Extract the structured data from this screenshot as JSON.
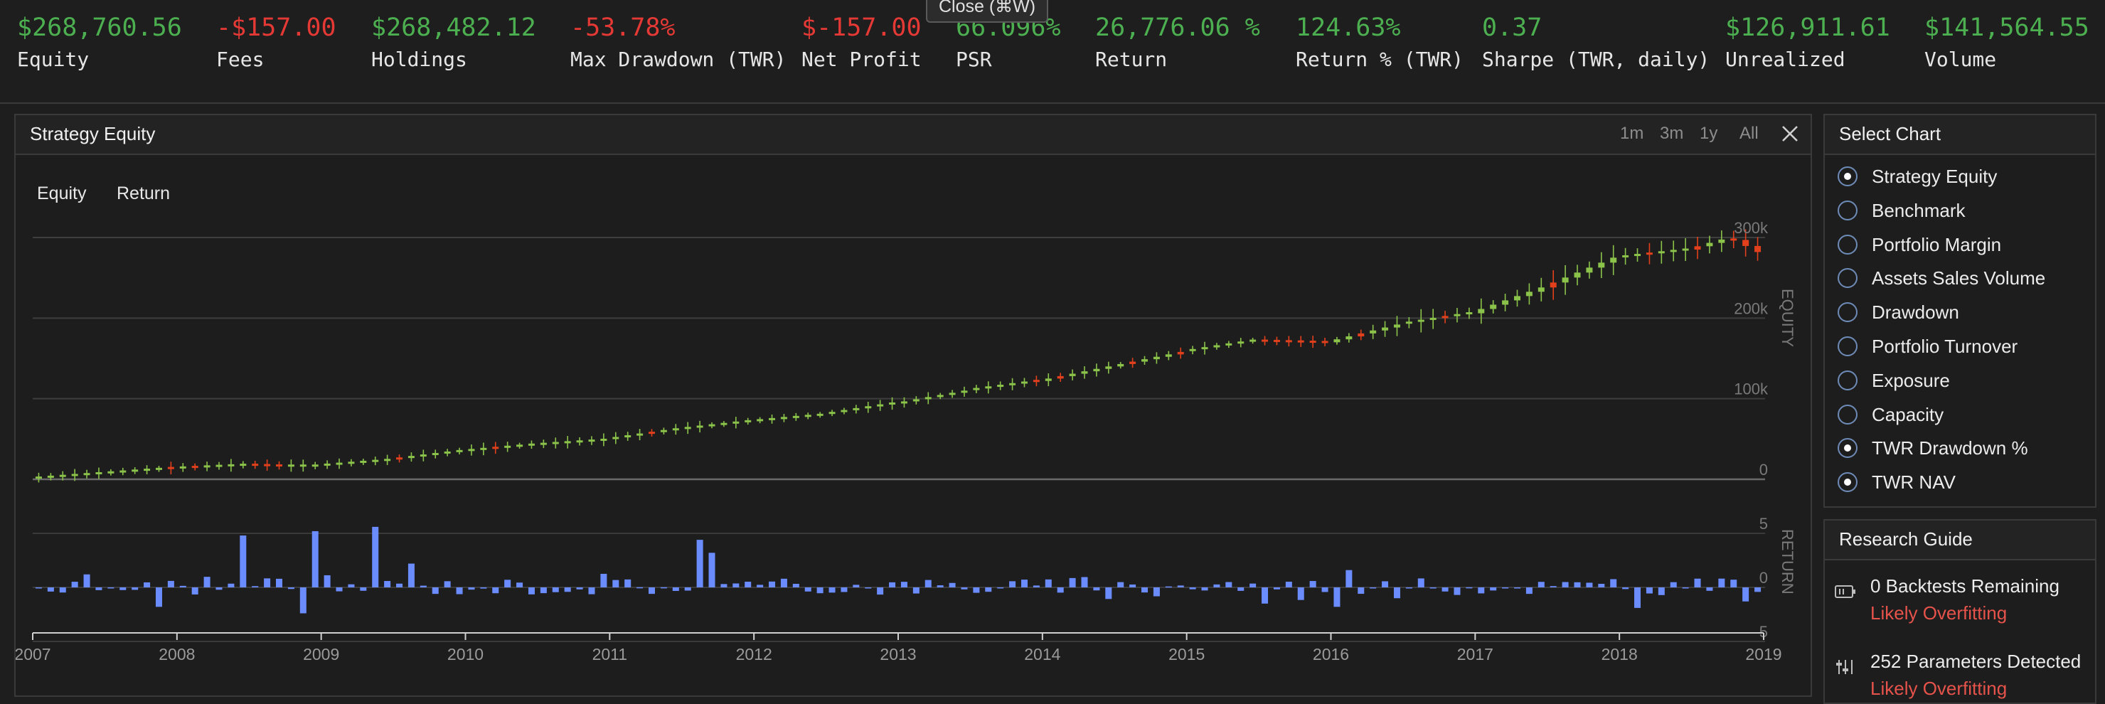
{
  "tooltip": "Close (⌘W)",
  "stats": [
    {
      "value": "$268,760.56",
      "label": "Equity",
      "tone": "pos"
    },
    {
      "value": "-$157.00",
      "label": "Fees",
      "tone": "neg"
    },
    {
      "value": "$268,482.12",
      "label": "Holdings",
      "tone": "pos"
    },
    {
      "value": "-53.78%",
      "label": "Max Drawdown (TWR)",
      "tone": "neg"
    },
    {
      "value": "$-157.00",
      "label": "Net Profit",
      "tone": "neg"
    },
    {
      "value": "66.096%",
      "label": "PSR",
      "tone": "pos"
    },
    {
      "value": "26,776.06 %",
      "label": "Return",
      "tone": "pos"
    },
    {
      "value": "124.63%",
      "label": "Return % (TWR)",
      "tone": "pos"
    },
    {
      "value": "0.37",
      "label": "Sharpe (TWR, daily)",
      "tone": "pos"
    },
    {
      "value": "$126,911.61",
      "label": "Unrealized",
      "tone": "pos"
    },
    {
      "value": "$141,564.55",
      "label": "Volume",
      "tone": "pos"
    }
  ],
  "chart_panel": {
    "title": "Strategy Equity",
    "ranges": [
      "1m",
      "3m",
      "1y",
      "All"
    ],
    "close_icon": "close-icon",
    "tabs": [
      "Equity",
      "Return"
    ]
  },
  "chart_data": {
    "type": "candlestick+bar",
    "panes": [
      {
        "name": "EQUITY",
        "ticks": [
          "300k",
          "200k",
          "100k",
          "0"
        ],
        "ylim": [
          0,
          300000
        ]
      },
      {
        "name": "RETURN",
        "ticks": [
          "5",
          "0",
          "-5"
        ],
        "ylim": [
          -5,
          5
        ]
      }
    ],
    "x_labels": [
      "2007",
      "2008",
      "2009",
      "2010",
      "2011",
      "2012",
      "2013",
      "2014",
      "2015",
      "2016",
      "2017",
      "2018",
      "2019"
    ],
    "xlim": [
      2007,
      2019
    ],
    "up_color": "#8bc34a",
    "down_color": "#e2401c",
    "bar_color": "#6b8cff",
    "equity": [
      {
        "t": 2007.0,
        "v": 1000
      },
      {
        "t": 2008.0,
        "v": 14000
      },
      {
        "t": 2008.5,
        "v": 18000
      },
      {
        "t": 2008.7,
        "v": 17000
      },
      {
        "t": 2009.0,
        "v": 17000
      },
      {
        "t": 2009.5,
        "v": 24000
      },
      {
        "t": 2010.0,
        "v": 35000
      },
      {
        "t": 2010.5,
        "v": 43000
      },
      {
        "t": 2011.0,
        "v": 49000
      },
      {
        "t": 2011.5,
        "v": 62000
      },
      {
        "t": 2012.0,
        "v": 72000
      },
      {
        "t": 2012.5,
        "v": 80000
      },
      {
        "t": 2013.0,
        "v": 94000
      },
      {
        "t": 2013.5,
        "v": 110000
      },
      {
        "t": 2014.0,
        "v": 122000
      },
      {
        "t": 2014.5,
        "v": 140000
      },
      {
        "t": 2015.0,
        "v": 158000
      },
      {
        "t": 2015.5,
        "v": 172000
      },
      {
        "t": 2016.0,
        "v": 170000
      },
      {
        "t": 2016.5,
        "v": 192000
      },
      {
        "t": 2017.0,
        "v": 206000
      },
      {
        "t": 2017.5,
        "v": 238000
      },
      {
        "t": 2018.0,
        "v": 275000
      },
      {
        "t": 2018.5,
        "v": 285000
      },
      {
        "t": 2018.8,
        "v": 300000
      },
      {
        "t": 2019.0,
        "v": 282000
      }
    ],
    "returns": [
      {
        "t": 2008.4,
        "v": 4.8
      },
      {
        "t": 2008.9,
        "v": 5.2
      },
      {
        "t": 2009.35,
        "v": 5.6
      },
      {
        "t": 2009.6,
        "v": 2.2
      },
      {
        "t": 2011.6,
        "v": 4.4
      },
      {
        "t": 2011.7,
        "v": 3.2
      },
      {
        "t": 2008.85,
        "v": -2.4
      },
      {
        "t": 2007.8,
        "v": -1.8
      },
      {
        "t": 2015.5,
        "v": -1.5
      },
      {
        "t": 2016.0,
        "v": -1.8
      },
      {
        "t": 2018.1,
        "v": -1.9
      },
      {
        "t": 2018.85,
        "v": -1.3
      },
      {
        "t": 2019.0,
        "v": -1.6
      },
      {
        "t": 2016.05,
        "v": 1.6
      }
    ]
  },
  "select_chart": {
    "title": "Select Chart",
    "items": [
      {
        "label": "Strategy Equity",
        "checked": true
      },
      {
        "label": "Benchmark",
        "checked": false
      },
      {
        "label": "Portfolio Margin",
        "checked": false
      },
      {
        "label": "Assets Sales Volume",
        "checked": false
      },
      {
        "label": "Drawdown",
        "checked": false
      },
      {
        "label": "Portfolio Turnover",
        "checked": false
      },
      {
        "label": "Exposure",
        "checked": false
      },
      {
        "label": "Capacity",
        "checked": false
      },
      {
        "label": "TWR Drawdown %",
        "checked": true
      },
      {
        "label": "TWR NAV",
        "checked": true
      }
    ]
  },
  "research_guide": {
    "title": "Research Guide",
    "items": [
      {
        "title": "0 Backtests Remaining",
        "status": "Likely Overfitting",
        "icon": "battery-icon"
      },
      {
        "title": "252 Parameters Detected",
        "status": "Likely Overfitting",
        "icon": "sliders-icon"
      }
    ]
  }
}
